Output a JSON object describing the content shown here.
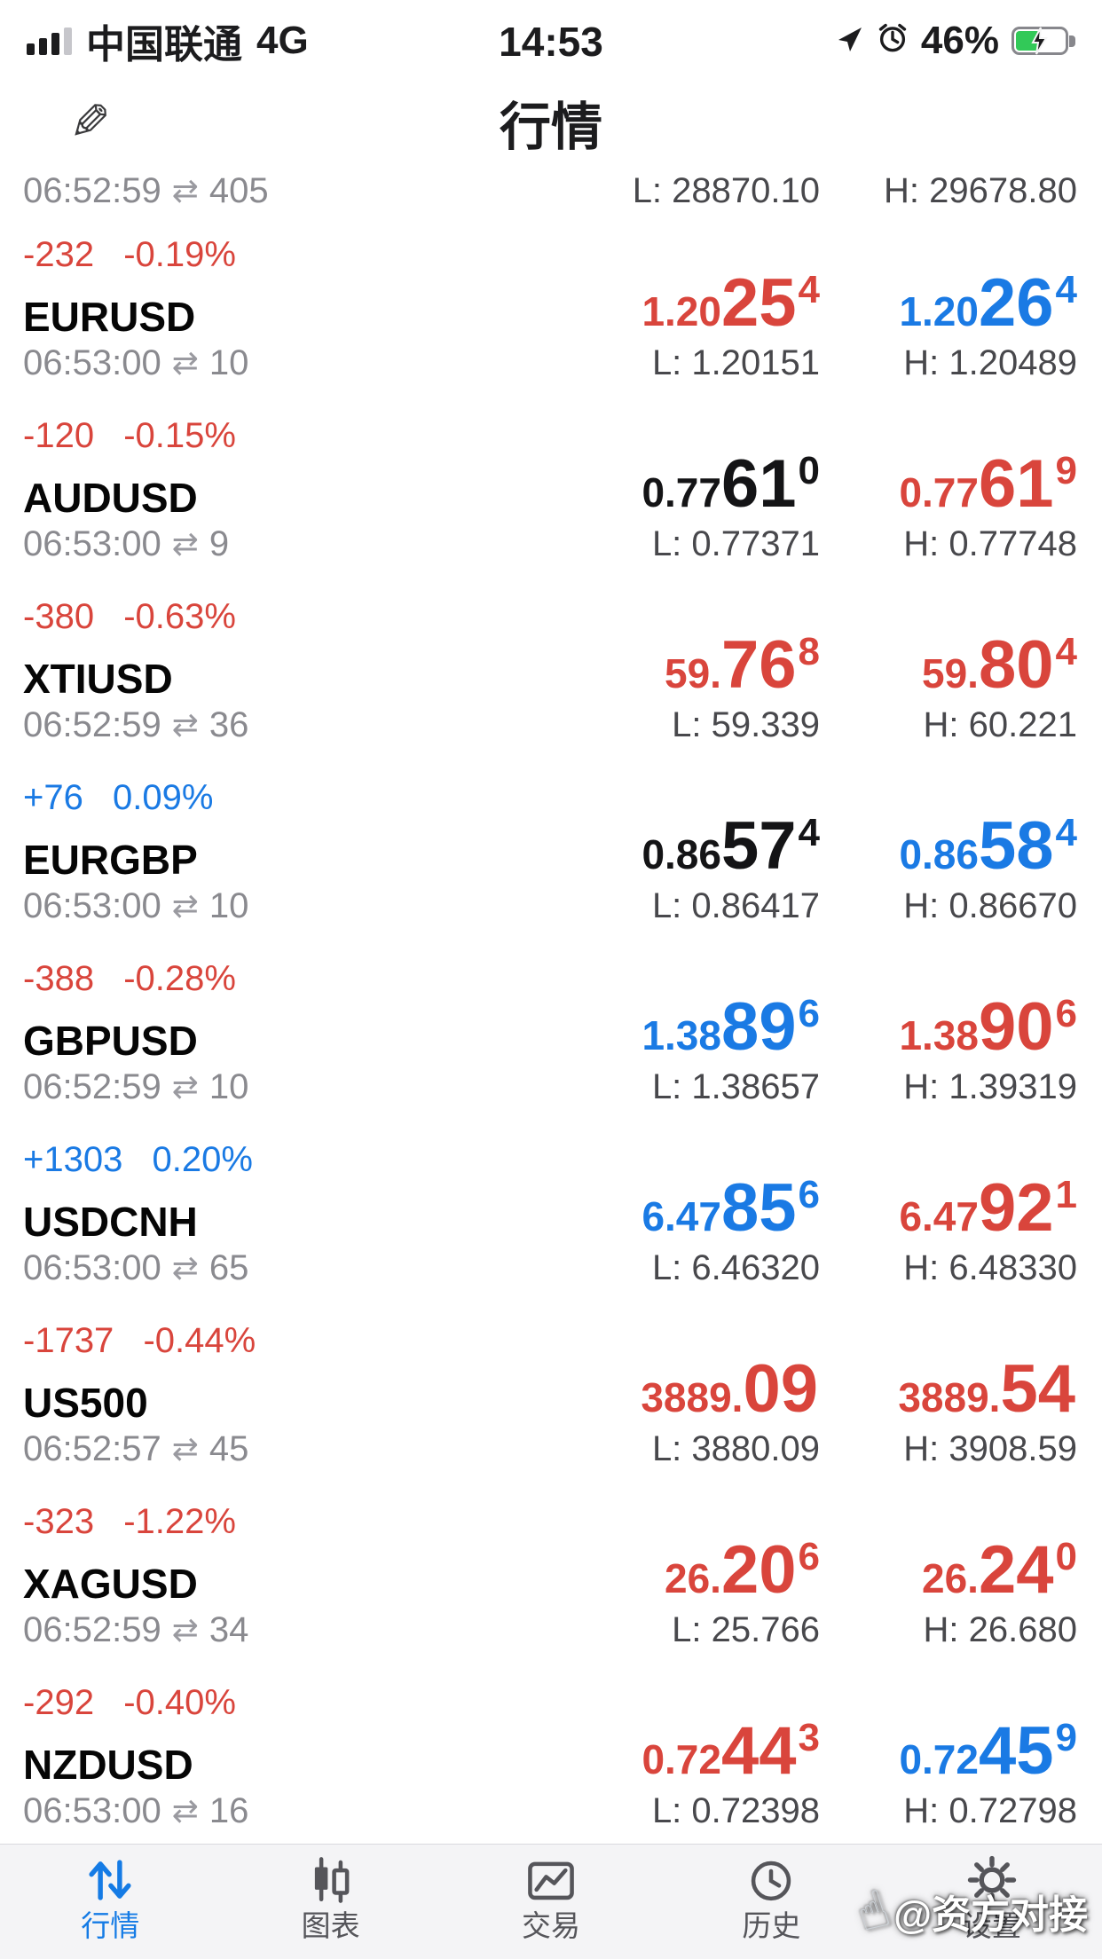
{
  "status_bar": {
    "carrier": "中国联通",
    "network": "4G",
    "time": "14:53",
    "battery_percent": "46%",
    "icons": {
      "signal": "cellular-signal-icon",
      "location": "location-arrow-icon",
      "alarm": "alarm-clock-icon",
      "battery": "battery-charging-icon"
    }
  },
  "header": {
    "title": "行情",
    "edit_icon_glyph": "✎"
  },
  "glyphs": {
    "spread": "⇄",
    "hand": "☝"
  },
  "partial_row": {
    "time": "06:52:59",
    "volume": "405",
    "low": "L: 28870.10",
    "high": "H: 29678.80"
  },
  "quotes": [
    {
      "change": "-232",
      "change_pct": "-0.19%",
      "direction": "down",
      "symbol": "EURUSD",
      "time": "06:53:00",
      "volume": "10",
      "bid": {
        "pre": "1.20",
        "big": "25",
        "sup": "4",
        "color": "red"
      },
      "ask": {
        "pre": "1.20",
        "big": "26",
        "sup": "4",
        "color": "blue"
      },
      "low": "L: 1.20151",
      "high": "H: 1.20489"
    },
    {
      "change": "-120",
      "change_pct": "-0.15%",
      "direction": "down",
      "symbol": "AUDUSD",
      "time": "06:53:00",
      "volume": "9",
      "bid": {
        "pre": "0.77",
        "big": "61",
        "sup": "0",
        "color": "black"
      },
      "ask": {
        "pre": "0.77",
        "big": "61",
        "sup": "9",
        "color": "red"
      },
      "low": "L: 0.77371",
      "high": "H: 0.77748"
    },
    {
      "change": "-380",
      "change_pct": "-0.63%",
      "direction": "down",
      "symbol": "XTIUSD",
      "time": "06:52:59",
      "volume": "36",
      "bid": {
        "pre": "59.",
        "big": "76",
        "sup": "8",
        "color": "red"
      },
      "ask": {
        "pre": "59.",
        "big": "80",
        "sup": "4",
        "color": "red"
      },
      "low": "L: 59.339",
      "high": "H: 60.221"
    },
    {
      "change": "+76",
      "change_pct": "0.09%",
      "direction": "up",
      "symbol": "EURGBP",
      "time": "06:53:00",
      "volume": "10",
      "bid": {
        "pre": "0.86",
        "big": "57",
        "sup": "4",
        "color": "black"
      },
      "ask": {
        "pre": "0.86",
        "big": "58",
        "sup": "4",
        "color": "blue"
      },
      "low": "L: 0.86417",
      "high": "H: 0.86670"
    },
    {
      "change": "-388",
      "change_pct": "-0.28%",
      "direction": "down",
      "symbol": "GBPUSD",
      "time": "06:52:59",
      "volume": "10",
      "bid": {
        "pre": "1.38",
        "big": "89",
        "sup": "6",
        "color": "blue"
      },
      "ask": {
        "pre": "1.38",
        "big": "90",
        "sup": "6",
        "color": "red"
      },
      "low": "L: 1.38657",
      "high": "H: 1.39319"
    },
    {
      "change": "+1303",
      "change_pct": "0.20%",
      "direction": "up",
      "symbol": "USDCNH",
      "time": "06:53:00",
      "volume": "65",
      "bid": {
        "pre": "6.47",
        "big": "85",
        "sup": "6",
        "color": "blue"
      },
      "ask": {
        "pre": "6.47",
        "big": "92",
        "sup": "1",
        "color": "red"
      },
      "low": "L: 6.46320",
      "high": "H: 6.48330"
    },
    {
      "change": "-1737",
      "change_pct": "-0.44%",
      "direction": "down",
      "symbol": "US500",
      "time": "06:52:57",
      "volume": "45",
      "bid": {
        "pre": "3889.",
        "big": "09",
        "sup": "",
        "color": "red"
      },
      "ask": {
        "pre": "3889.",
        "big": "54",
        "sup": "",
        "color": "red"
      },
      "low": "L: 3880.09",
      "high": "H: 3908.59"
    },
    {
      "change": "-323",
      "change_pct": "-1.22%",
      "direction": "down",
      "symbol": "XAGUSD",
      "time": "06:52:59",
      "volume": "34",
      "bid": {
        "pre": "26.",
        "big": "20",
        "sup": "6",
        "color": "red"
      },
      "ask": {
        "pre": "26.",
        "big": "24",
        "sup": "0",
        "color": "red"
      },
      "low": "L: 25.766",
      "high": "H: 26.680"
    },
    {
      "change": "-292",
      "change_pct": "-0.40%",
      "direction": "down",
      "symbol": "NZDUSD",
      "time": "06:53:00",
      "volume": "16",
      "bid": {
        "pre": "0.72",
        "big": "44",
        "sup": "3",
        "color": "red"
      },
      "ask": {
        "pre": "0.72",
        "big": "45",
        "sup": "9",
        "color": "blue"
      },
      "low": "L: 0.72398",
      "high": "H: 0.72798"
    }
  ],
  "tab_bar": {
    "items": [
      {
        "key": "quotes",
        "label": "行情",
        "icon": "updown-arrows-icon",
        "active": true
      },
      {
        "key": "charts",
        "label": "图表",
        "icon": "candlestick-icon",
        "active": false
      },
      {
        "key": "trade",
        "label": "交易",
        "icon": "chart-line-icon",
        "active": false
      },
      {
        "key": "history",
        "label": "历史",
        "icon": "clock-icon",
        "active": false
      },
      {
        "key": "settings",
        "label": "设置",
        "icon": "gear-icon",
        "active": false
      }
    ]
  },
  "watermark": {
    "text": "@资方对接"
  },
  "colors": {
    "up_blue": "#1a7ae4",
    "down_red": "#d9453c",
    "neutral_black": "#141416",
    "active_tab": "#157be5",
    "battery_green": "#32c958"
  }
}
